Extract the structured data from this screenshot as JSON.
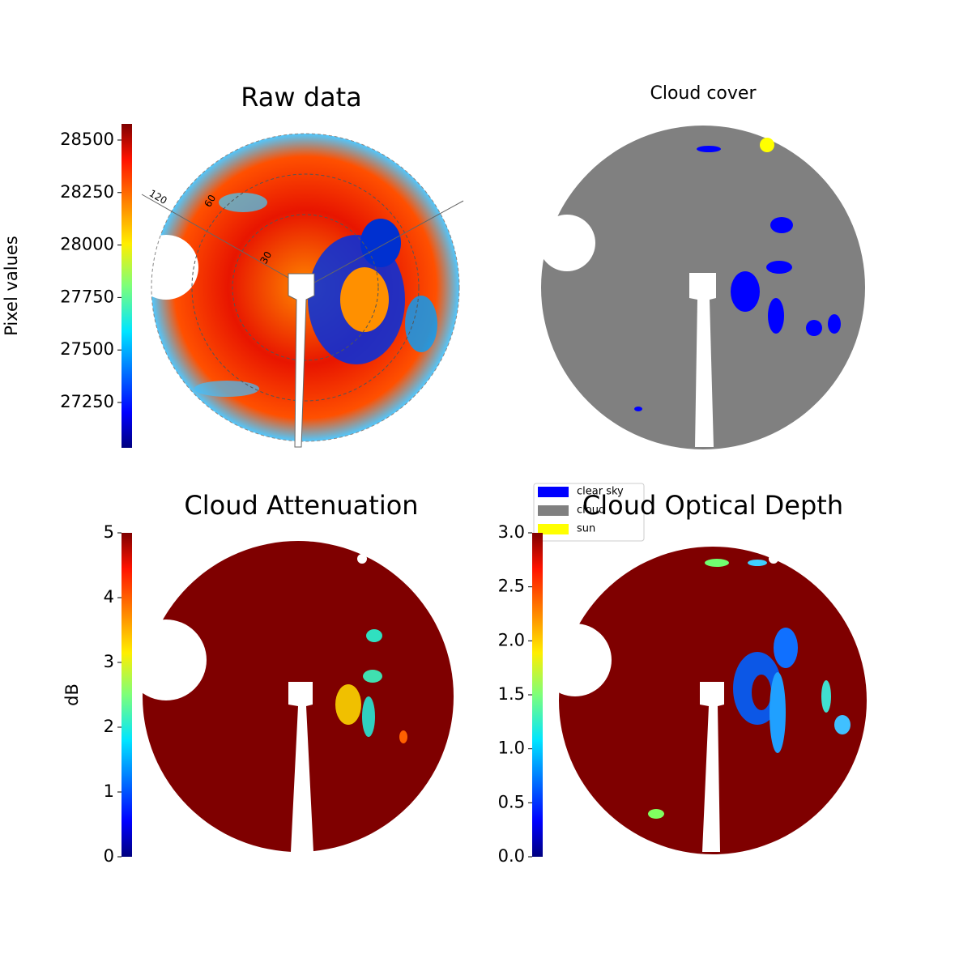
{
  "chart_data": [
    {
      "type": "image",
      "title": "Raw data",
      "colorbar_label": "Pixel values",
      "clim": [
        27034,
        28577
      ],
      "colorbar_ticks": [
        27250,
        27500,
        27750,
        28000,
        28250,
        28500
      ],
      "colormap": "jet",
      "annotations": [
        "120",
        "60",
        "30"
      ]
    },
    {
      "type": "image",
      "title": "Cloud cover",
      "legend": [
        {
          "name": "clear sky",
          "color": "#0000ff"
        },
        {
          "name": "cloud",
          "color": "#808080"
        },
        {
          "name": "sun",
          "color": "#ffff00"
        }
      ],
      "legend_position": "lower left"
    },
    {
      "type": "image",
      "title": "Cloud Attenuation",
      "colorbar_label": "dB",
      "clim": [
        0,
        5
      ],
      "colorbar_ticks": [
        0,
        1,
        2,
        3,
        4,
        5
      ],
      "colormap": "jet"
    },
    {
      "type": "image",
      "title": "Cloud Optical Depth",
      "clim": [
        0,
        3
      ],
      "colorbar_ticks": [
        {
          "value": 0,
          "label": "0.0"
        },
        {
          "value": 0.5,
          "label": "0.5"
        },
        {
          "value": 1,
          "label": "1.0"
        },
        {
          "value": 1.5,
          "label": "1.5"
        },
        {
          "value": 2,
          "label": "2.0"
        },
        {
          "value": 2.5,
          "label": "2.5"
        },
        {
          "value": 3,
          "label": "3.0"
        }
      ],
      "colormap": "jet"
    }
  ]
}
